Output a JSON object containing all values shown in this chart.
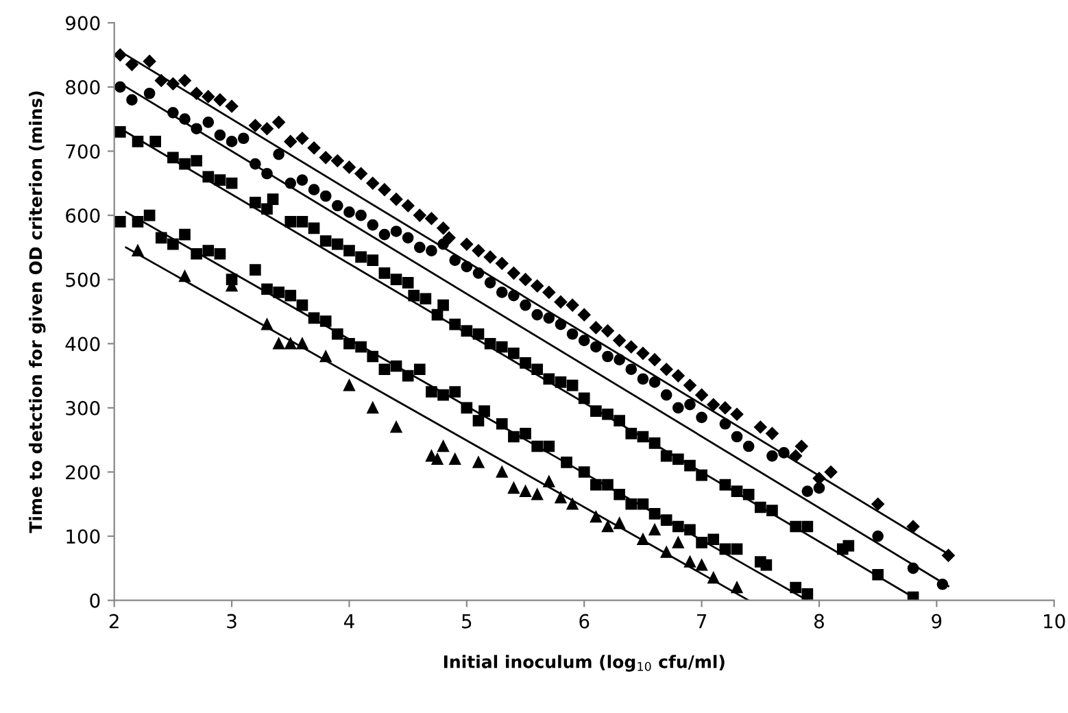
{
  "chart_data": {
    "type": "scatter",
    "xlabel": "Initial inoculum (log$_{10}$ cfu/ml)",
    "ylabel": "Time to detction for given OD criterion (mins)",
    "xlim": [
      2,
      10
    ],
    "xticks": [
      2,
      3,
      4,
      5,
      6,
      7,
      8,
      9,
      10
    ],
    "ylim": [
      0,
      900
    ],
    "yticks": [
      0,
      100,
      200,
      300,
      400,
      500,
      600,
      700,
      800,
      900
    ],
    "grid": false,
    "legend": false,
    "series": [
      {
        "marker": "diamond",
        "color": "#000000",
        "x": [
          2.05,
          2.15,
          2.3,
          2.4,
          2.5,
          2.6,
          2.7,
          2.8,
          2.9,
          3.0,
          3.2,
          3.3,
          3.4,
          3.5,
          3.6,
          3.7,
          3.8,
          3.9,
          4.0,
          4.1,
          4.2,
          4.3,
          4.4,
          4.5,
          4.6,
          4.7,
          4.8,
          4.85,
          5.0,
          5.1,
          5.2,
          5.3,
          5.4,
          5.5,
          5.6,
          5.7,
          5.8,
          5.9,
          6.0,
          6.1,
          6.2,
          6.3,
          6.4,
          6.5,
          6.6,
          6.7,
          6.8,
          6.9,
          7.0,
          7.1,
          7.2,
          7.3,
          7.5,
          7.6,
          7.8,
          7.85,
          8.0,
          8.1,
          8.5,
          8.8,
          9.1
        ],
        "values": [
          850,
          835,
          840,
          810,
          805,
          810,
          790,
          785,
          780,
          770,
          740,
          735,
          745,
          715,
          720,
          705,
          690,
          685,
          675,
          665,
          650,
          640,
          625,
          615,
          600,
          595,
          580,
          565,
          555,
          545,
          535,
          525,
          510,
          500,
          490,
          480,
          465,
          460,
          445,
          425,
          420,
          405,
          395,
          385,
          375,
          360,
          350,
          335,
          320,
          305,
          300,
          290,
          270,
          260,
          225,
          240,
          190,
          200,
          150,
          115,
          70
        ]
      },
      {
        "marker": "circle",
        "color": "#000000",
        "x": [
          2.05,
          2.15,
          2.3,
          2.5,
          2.6,
          2.7,
          2.8,
          2.9,
          3.0,
          3.1,
          3.2,
          3.3,
          3.4,
          3.5,
          3.6,
          3.7,
          3.8,
          3.9,
          4.0,
          4.1,
          4.2,
          4.3,
          4.4,
          4.5,
          4.6,
          4.7,
          4.8,
          4.9,
          5.0,
          5.1,
          5.2,
          5.3,
          5.4,
          5.5,
          5.6,
          5.7,
          5.8,
          5.9,
          6.0,
          6.1,
          6.2,
          6.3,
          6.4,
          6.5,
          6.6,
          6.7,
          6.8,
          6.9,
          7.0,
          7.2,
          7.3,
          7.4,
          7.6,
          7.7,
          7.9,
          8.0,
          8.5,
          8.8,
          9.05
        ],
        "values": [
          800,
          780,
          790,
          760,
          750,
          735,
          745,
          725,
          715,
          720,
          680,
          665,
          695,
          650,
          655,
          640,
          630,
          615,
          605,
          600,
          585,
          570,
          575,
          565,
          550,
          545,
          555,
          530,
          520,
          510,
          495,
          480,
          475,
          460,
          445,
          440,
          430,
          415,
          405,
          395,
          380,
          375,
          360,
          345,
          340,
          320,
          300,
          305,
          285,
          275,
          255,
          240,
          225,
          230,
          170,
          175,
          100,
          50,
          25
        ]
      },
      {
        "marker": "square",
        "color": "#000000",
        "x": [
          2.05,
          2.2,
          2.35,
          2.5,
          2.6,
          2.7,
          2.8,
          2.9,
          3.0,
          3.2,
          3.3,
          3.35,
          3.5,
          3.6,
          3.7,
          3.8,
          3.9,
          4.0,
          4.1,
          4.2,
          4.3,
          4.4,
          4.5,
          4.55,
          4.65,
          4.75,
          4.8,
          4.9,
          5.0,
          5.1,
          5.2,
          5.3,
          5.4,
          5.5,
          5.6,
          5.7,
          5.8,
          5.9,
          6.0,
          6.1,
          6.2,
          6.3,
          6.4,
          6.5,
          6.6,
          6.7,
          6.8,
          6.9,
          7.0,
          7.2,
          7.3,
          7.4,
          7.5,
          7.6,
          7.8,
          7.9,
          8.2,
          8.25,
          8.5,
          8.8
        ],
        "values": [
          730,
          715,
          715,
          690,
          680,
          685,
          660,
          655,
          650,
          620,
          610,
          625,
          590,
          590,
          580,
          560,
          555,
          545,
          535,
          530,
          510,
          500,
          495,
          475,
          470,
          445,
          460,
          430,
          420,
          415,
          400,
          395,
          385,
          370,
          360,
          345,
          340,
          335,
          315,
          295,
          290,
          280,
          260,
          255,
          245,
          225,
          220,
          210,
          195,
          180,
          170,
          165,
          145,
          140,
          115,
          115,
          80,
          85,
          40,
          5
        ]
      },
      {
        "marker": "square",
        "color": "#000000",
        "x": [
          2.05,
          2.2,
          2.3,
          2.4,
          2.5,
          2.6,
          2.7,
          2.8,
          2.9,
          3.0,
          3.2,
          3.3,
          3.4,
          3.5,
          3.6,
          3.7,
          3.8,
          3.9,
          4.0,
          4.1,
          4.2,
          4.3,
          4.4,
          4.5,
          4.6,
          4.7,
          4.8,
          4.9,
          5.0,
          5.1,
          5.15,
          5.3,
          5.4,
          5.5,
          5.6,
          5.7,
          5.85,
          6.0,
          6.1,
          6.2,
          6.3,
          6.4,
          6.5,
          6.6,
          6.7,
          6.8,
          6.9,
          7.0,
          7.1,
          7.2,
          7.3,
          7.5,
          7.55,
          7.8,
          7.9
        ],
        "values": [
          590,
          590,
          600,
          565,
          555,
          570,
          540,
          545,
          540,
          500,
          515,
          485,
          480,
          475,
          460,
          440,
          435,
          415,
          400,
          395,
          380,
          360,
          365,
          350,
          360,
          325,
          320,
          325,
          300,
          280,
          295,
          275,
          255,
          260,
          240,
          240,
          215,
          200,
          180,
          180,
          165,
          150,
          150,
          135,
          125,
          115,
          110,
          90,
          95,
          80,
          80,
          60,
          55,
          20,
          10
        ]
      },
      {
        "marker": "triangle",
        "color": "#000000",
        "x": [
          2.2,
          2.6,
          3.0,
          3.3,
          3.4,
          3.5,
          3.6,
          3.8,
          4.0,
          4.2,
          4.4,
          4.7,
          4.75,
          4.8,
          4.9,
          5.1,
          5.3,
          5.4,
          5.5,
          5.6,
          5.7,
          5.8,
          5.9,
          6.1,
          6.2,
          6.3,
          6.5,
          6.6,
          6.7,
          6.8,
          6.9,
          7.0,
          7.1,
          7.3
        ],
        "values": [
          545,
          505,
          490,
          430,
          400,
          400,
          400,
          380,
          335,
          300,
          270,
          225,
          220,
          240,
          220,
          215,
          200,
          175,
          170,
          165,
          185,
          160,
          150,
          130,
          115,
          120,
          95,
          110,
          75,
          90,
          60,
          55,
          35,
          20
        ]
      },
      {
        "type": "line",
        "marker": "none",
        "color": "#000000",
        "x": [
          2.1,
          9.1
        ],
        "values": [
          850,
          72
        ]
      },
      {
        "type": "line",
        "marker": "none",
        "color": "#000000",
        "x": [
          2.1,
          9.1
        ],
        "values": [
          800,
          22
        ]
      },
      {
        "type": "line",
        "marker": "none",
        "color": "#000000",
        "x": [
          2.1,
          8.8
        ],
        "values": [
          730,
          5
        ]
      },
      {
        "type": "line",
        "marker": "none",
        "color": "#000000",
        "x": [
          2.1,
          7.9
        ],
        "values": [
          605,
          0
        ]
      },
      {
        "type": "line",
        "marker": "none",
        "color": "#000000",
        "x": [
          2.1,
          7.4
        ],
        "values": [
          550,
          0
        ]
      }
    ]
  }
}
